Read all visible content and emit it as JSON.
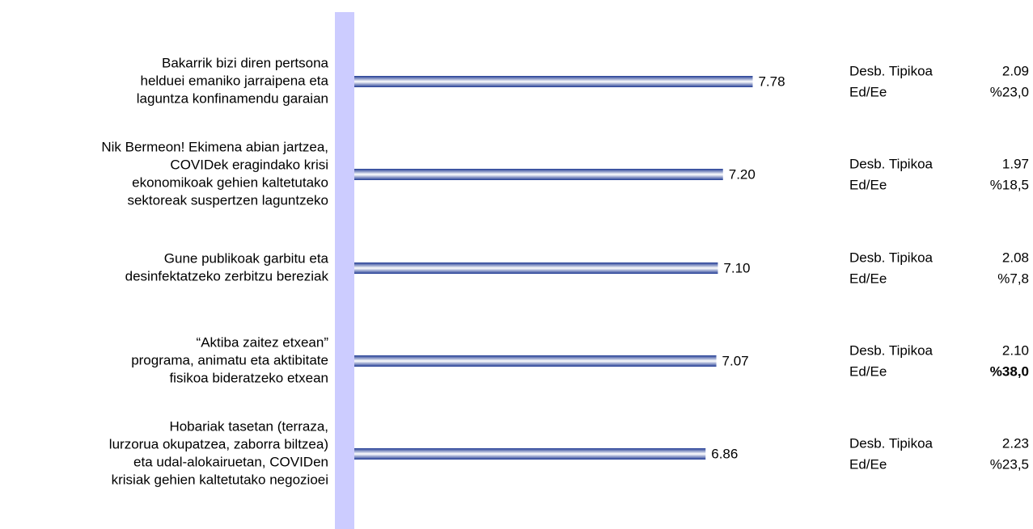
{
  "chart_data": {
    "type": "bar",
    "orientation": "horizontal",
    "categories": [
      [
        "Bakarrik bizi diren pertsona",
        "helduei emaniko jarraipena eta",
        "laguntza konfinamendu garaian"
      ],
      [
        "Nik Bermeon! Ekimena abian jartzea,",
        "COVIDek eragindako krisi",
        "ekonomikoak gehien kaltetutako",
        "sektoreak suspertzen laguntzeko"
      ],
      [
        "Gune publikoak garbitu eta",
        "desinfektatzeko zerbitzu bereziak"
      ],
      [
        "“Aktiba zaitez etxean”",
        "programa, animatu eta aktibitate",
        "fisikoa bideratzeko etxean"
      ],
      [
        "Hobariak tasetan (terraza,",
        "lurzorua okupatzea, zaborra biltzea)",
        "eta udal-alokairuetan, COVIDen",
        "krisiak gehien kaltetutako negozioei"
      ]
    ],
    "values": [
      7.78,
      7.2,
      7.1,
      7.07,
      6.86
    ],
    "value_labels": [
      "7.78",
      "7.20",
      "7.10",
      "7.07",
      "6.86"
    ],
    "color": "#1f3a93",
    "xlim": [
      0,
      10
    ],
    "stats": {
      "std_label": "Desb. Tipikoa",
      "ratio_label": "Ed/Ee",
      "std": [
        2.09,
        1.97,
        2.08,
        2.1,
        2.23
      ],
      "std_labels": [
        "2.09",
        "1.97",
        "2.08",
        "2.10",
        "2.23"
      ],
      "ratio": [
        "%23,0",
        "%18,5",
        "%7,8",
        "%38,0",
        "%23,5"
      ],
      "ratio_bold": [
        false,
        false,
        false,
        true,
        false
      ]
    }
  }
}
